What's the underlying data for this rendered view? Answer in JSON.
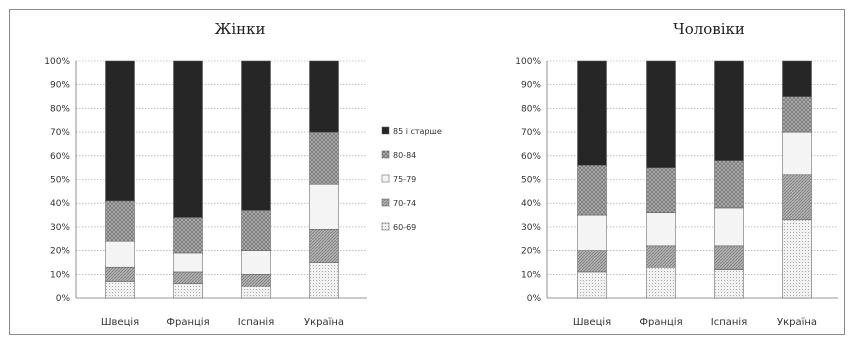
{
  "chart_data": [
    {
      "type": "bar",
      "stacked": true,
      "title": "Жінки",
      "categories": [
        "Швеція",
        "Франція",
        "Іспанія",
        "Україна"
      ],
      "ylim": [
        0,
        100
      ],
      "yticks": [
        "0%",
        "10%",
        "20%",
        "30%",
        "40%",
        "50%",
        "60%",
        "70%",
        "80%",
        "90%",
        "100%"
      ],
      "grid": true,
      "series": [
        {
          "name": "60-69",
          "values": [
            7,
            6,
            5,
            15
          ],
          "color": "#efefef",
          "pattern": "dots"
        },
        {
          "name": "70-74",
          "values": [
            6,
            5,
            5,
            14
          ],
          "color": "#a9a9a9",
          "pattern": "hatch"
        },
        {
          "name": "75-79",
          "values": [
            11,
            8,
            10,
            19
          ],
          "color": "#f4f4f4",
          "pattern": "none"
        },
        {
          "name": "80-84",
          "values": [
            17,
            15,
            17,
            22
          ],
          "color": "#a0a0a0",
          "pattern": "cross"
        },
        {
          "name": "85 і старше",
          "values": [
            59,
            66,
            63,
            30
          ],
          "color": "#262626",
          "pattern": "none"
        }
      ]
    },
    {
      "type": "bar",
      "stacked": true,
      "title": "Чоловіки",
      "categories": [
        "Швеція",
        "Франція",
        "Іспанія",
        "Україна"
      ],
      "ylim": [
        0,
        100
      ],
      "yticks": [
        "0%",
        "10%",
        "20%",
        "30%",
        "40%",
        "50%",
        "60%",
        "70%",
        "80%",
        "90%",
        "100%"
      ],
      "grid": true,
      "series": [
        {
          "name": "60-69",
          "values": [
            11,
            13,
            12,
            33
          ],
          "color": "#efefef",
          "pattern": "dots"
        },
        {
          "name": "70-74",
          "values": [
            9,
            9,
            10,
            19
          ],
          "color": "#a9a9a9",
          "pattern": "hatch"
        },
        {
          "name": "75-79",
          "values": [
            15,
            14,
            16,
            18
          ],
          "color": "#f4f4f4",
          "pattern": "none"
        },
        {
          "name": "80-84",
          "values": [
            21,
            19,
            20,
            15
          ],
          "color": "#a0a0a0",
          "pattern": "cross"
        },
        {
          "name": "85 і старше",
          "values": [
            44,
            45,
            42,
            15
          ],
          "color": "#262626",
          "pattern": "none"
        }
      ]
    }
  ],
  "legend": {
    "position": "between-charts",
    "items": [
      "85 і старше",
      "80-84",
      "75-79",
      "70-74",
      "60-69"
    ]
  }
}
